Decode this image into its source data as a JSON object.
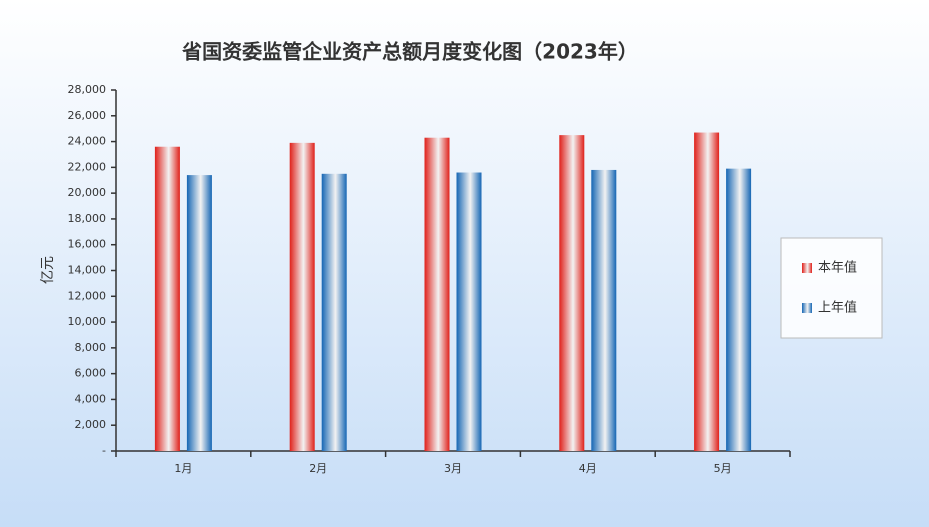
{
  "chart_data": {
    "type": "bar",
    "title": "省国资委监管企业资产总额月度变化图（2023年）",
    "y_label": "亿元",
    "categories": [
      "1月",
      "2月",
      "3月",
      "4月",
      "5月"
    ],
    "series": [
      {
        "name": "本年值",
        "color": "#e0201a",
        "values": [
          23600,
          23900,
          24300,
          24500,
          24700
        ]
      },
      {
        "name": "上年值",
        "color": "#1566b4",
        "values": [
          21400,
          21500,
          21600,
          21800,
          21900
        ]
      }
    ],
    "ylim": [
      0,
      28000
    ],
    "yticks": [
      {
        "value": 0,
        "label": "-"
      },
      {
        "value": 2000,
        "label": "2,000"
      },
      {
        "value": 4000,
        "label": "4,000"
      },
      {
        "value": 6000,
        "label": "6,000"
      },
      {
        "value": 8000,
        "label": "8,000"
      },
      {
        "value": 10000,
        "label": "10,000"
      },
      {
        "value": 12000,
        "label": "12,000"
      },
      {
        "value": 14000,
        "label": "14,000"
      },
      {
        "value": 16000,
        "label": "16,000"
      },
      {
        "value": 18000,
        "label": "18,000"
      },
      {
        "value": 20000,
        "label": "20,000"
      },
      {
        "value": 22000,
        "label": "22,000"
      },
      {
        "value": 24000,
        "label": "24,000"
      },
      {
        "value": 26000,
        "label": "26,000"
      },
      {
        "value": 28000,
        "label": "28,000"
      }
    ],
    "grid": false,
    "legend": "right"
  }
}
